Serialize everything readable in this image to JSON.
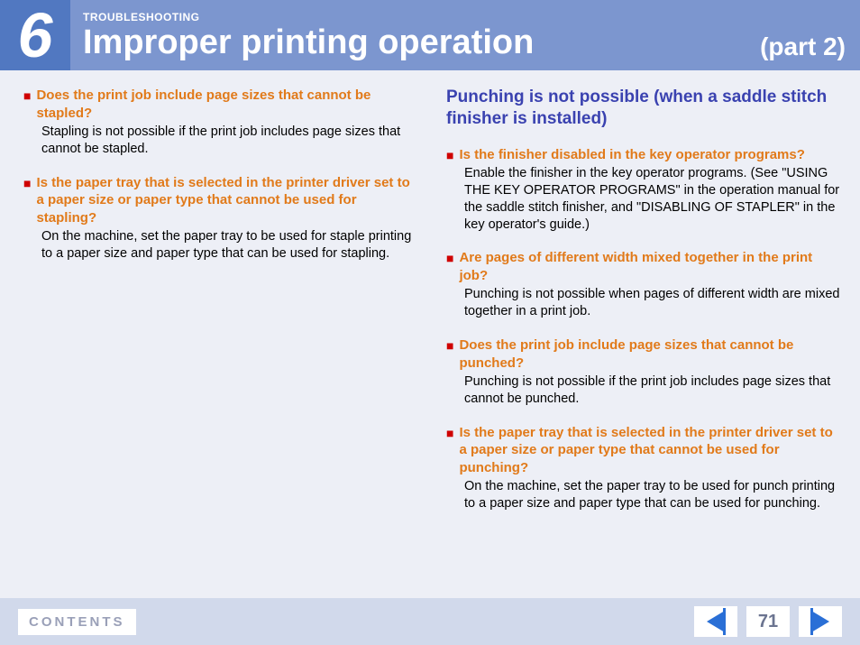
{
  "header": {
    "chapter_number": "6",
    "section_label": "TROUBLESHOOTING",
    "title": "Improper printing operation",
    "part": "(part 2)"
  },
  "left_column": {
    "items": [
      {
        "question": "Does the print job include page sizes that cannot be stapled?",
        "answer": "Stapling is not possible if the print job includes page sizes that cannot be stapled."
      },
      {
        "question": "Is the paper tray that is selected in the printer driver set to a paper size or paper type that cannot be used for stapling?",
        "answer": "On the machine, set the paper tray to be used for staple printing to a paper size and paper type that can be used for stapling."
      }
    ]
  },
  "right_column": {
    "subhead": "Punching is not possible (when a saddle stitch finisher is installed)",
    "items": [
      {
        "question": "Is the finisher disabled in the key operator programs?",
        "answer": "Enable the finisher in the key operator programs. (See \"USING THE KEY OPERATOR PROGRAMS\" in the operation manual for the saddle stitch finisher, and \"DISABLING OF STAPLER\" in the key operator's guide.)"
      },
      {
        "question": "Are pages of different width mixed together in the print job?",
        "answer": "Punching is not possible when pages of different width are mixed together in a print job."
      },
      {
        "question": "Does the print job include page sizes that cannot be punched?",
        "answer": "Punching is not possible if the print job includes page sizes that cannot be punched."
      },
      {
        "question": "Is the paper tray that is selected in the printer driver set to a paper size or paper type that cannot be used for punching?",
        "answer": "On the machine, set the paper tray to be used for punch printing to a paper size and paper type that can be used for punching."
      }
    ]
  },
  "footer": {
    "contents_label": "CONTENTS",
    "page_number": "71"
  },
  "colors": {
    "header_badge_bg": "#5178c1",
    "header_bar_bg": "#7c96cf",
    "page_bg": "#edeff6",
    "footer_bg": "#d1d9eb",
    "subhead_color": "#3a42b0",
    "question_color": "#e17a1a",
    "bullet_color": "#cf0000",
    "nav_arrow_color": "#2a6fd6",
    "contents_text_color": "#9aa0b8",
    "page_num_color": "#6b7490"
  }
}
